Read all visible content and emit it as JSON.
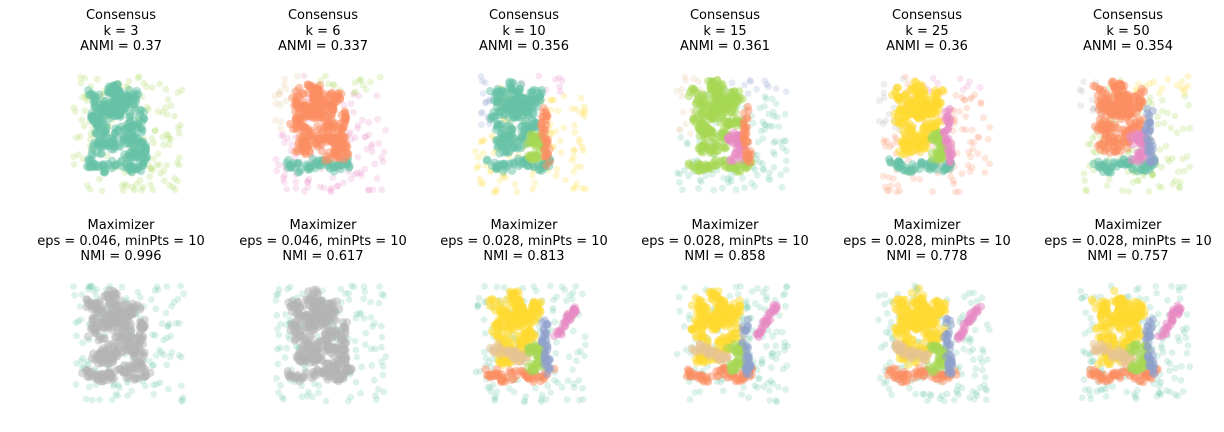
{
  "figure": {
    "colors": {
      "teal": "#66c2a5",
      "orange": "#fc8d62",
      "blue": "#8da0cb",
      "pink": "#e78ac3",
      "green": "#a6d854",
      "yellow": "#ffd92f",
      "tan": "#e5c494",
      "gray": "#b3b3b3"
    }
  },
  "chart_data": [
    {
      "type": "scatter",
      "title_lines": [
        "Consensus",
        "k = 3",
        "ANMI = 0.37"
      ],
      "method": "Consensus",
      "k": 3,
      "score_name": "ANMI",
      "score": 0.37,
      "cluster_colors": {
        "noise": "green",
        "curves": "teal",
        "box": "teal",
        "blob_curve": "teal",
        "bottom": "teal",
        "left_scatter": "green",
        "top_scatter": "green"
      },
      "axis": "off",
      "grid": false,
      "legend": "none"
    },
    {
      "type": "scatter",
      "title_lines": [
        "Consensus",
        "k = 6",
        "ANMI = 0.337"
      ],
      "method": "Consensus",
      "k": 6,
      "score_name": "ANMI",
      "score": 0.337,
      "cluster_colors": {
        "noise": "pink",
        "curves": "orange",
        "box": "orange",
        "blob_curve": "orange",
        "bottom": "teal",
        "left_scatter": "tan",
        "top_scatter": "green"
      },
      "axis": "off",
      "grid": false,
      "legend": "none"
    },
    {
      "type": "scatter",
      "title_lines": [
        "Consensus",
        "k = 10",
        "ANMI = 0.356"
      ],
      "method": "Consensus",
      "k": 10,
      "score_name": "ANMI",
      "score": 0.356,
      "cluster_colors": {
        "noise": "yellow",
        "curves": "teal",
        "box": "green",
        "blob_curve": "orange",
        "bottom": "teal",
        "left_scatter": "blue",
        "top_scatter": "pink"
      },
      "axis": "off",
      "grid": false,
      "legend": "none"
    },
    {
      "type": "scatter",
      "title_lines": [
        "Consensus",
        "k = 15",
        "ANMI = 0.361"
      ],
      "method": "Consensus",
      "k": 15,
      "score_name": "ANMI",
      "score": 0.361,
      "cluster_colors": {
        "noise": "teal",
        "curves": "green",
        "box": "pink",
        "blob_curve": "orange",
        "bottom": "green",
        "left_scatter": "tan",
        "top_scatter": "blue"
      },
      "axis": "off",
      "grid": false,
      "legend": "none"
    },
    {
      "type": "scatter",
      "title_lines": [
        "Consensus",
        "k = 25",
        "ANMI = 0.36"
      ],
      "method": "Consensus",
      "k": 25,
      "score_name": "ANMI",
      "score": 0.36,
      "cluster_colors": {
        "noise": "orange",
        "curves": "yellow",
        "box": "green",
        "blob_curve": "pink",
        "bottom": "teal",
        "left_scatter": "gray",
        "top_scatter": "pink"
      },
      "axis": "off",
      "grid": false,
      "legend": "none"
    },
    {
      "type": "scatter",
      "title_lines": [
        "Consensus",
        "k = 50",
        "ANMI = 0.354"
      ],
      "method": "Consensus",
      "k": 50,
      "score_name": "ANMI",
      "score": 0.354,
      "cluster_colors": {
        "noise": "green",
        "curves": "orange",
        "box": "pink",
        "blob_curve": "blue",
        "bottom": "teal",
        "left_scatter": "gray",
        "top_scatter": "yellow"
      },
      "axis": "off",
      "grid": false,
      "legend": "none"
    },
    {
      "type": "scatter",
      "title_lines": [
        "Maximizer",
        "eps = 0.046, minPts = 10",
        "NMI = 0.996"
      ],
      "method": "Maximizer",
      "eps": 0.046,
      "minPts": 10,
      "score_name": "NMI",
      "score": 0.996,
      "cluster_colors": {
        "noise": "teal",
        "curves": "gray",
        "box": "gray",
        "blob_curve": "gray",
        "bottom": "gray",
        "left_scatter": "teal",
        "top_scatter": "teal"
      },
      "axis": "off",
      "grid": false,
      "legend": "none"
    },
    {
      "type": "scatter",
      "title_lines": [
        "Maximizer",
        "eps = 0.046, minPts = 10",
        "NMI = 0.617"
      ],
      "method": "Maximizer",
      "eps": 0.046,
      "minPts": 10,
      "score_name": "NMI",
      "score": 0.617,
      "cluster_colors": {
        "noise": "teal",
        "curves": "gray",
        "box": "gray",
        "blob_curve": "gray",
        "bottom": "gray",
        "left_scatter": "teal",
        "top_scatter": "teal"
      },
      "axis": "off",
      "grid": false,
      "legend": "none"
    },
    {
      "type": "scatter",
      "title_lines": [
        "Maximizer",
        "eps = 0.028, minPts = 10",
        "NMI = 0.813"
      ],
      "method": "Maximizer",
      "eps": 0.028,
      "minPts": 10,
      "score_name": "NMI",
      "score": 0.813,
      "cluster_colors": {
        "noise": "teal",
        "curves": "yellow",
        "box": "green",
        "blob_curve": "blue",
        "bottom": "orange",
        "left_scatter": "teal",
        "top_scatter": "teal",
        "mid": "tan",
        "pink_curve": "pink"
      },
      "axis": "off",
      "grid": false,
      "legend": "none"
    },
    {
      "type": "scatter",
      "title_lines": [
        "Maximizer",
        "eps = 0.028, minPts = 10",
        "NMI = 0.858"
      ],
      "method": "Maximizer",
      "eps": 0.028,
      "minPts": 10,
      "score_name": "NMI",
      "score": 0.858,
      "cluster_colors": {
        "noise": "teal",
        "curves": "yellow",
        "box": "green",
        "blob_curve": "blue",
        "bottom": "orange",
        "left_scatter": "teal",
        "top_scatter": "teal",
        "mid": "tan",
        "pink_curve": "pink"
      },
      "axis": "off",
      "grid": false,
      "legend": "none"
    },
    {
      "type": "scatter",
      "title_lines": [
        "Maximizer",
        "eps = 0.028, minPts = 10",
        "NMI = 0.778"
      ],
      "method": "Maximizer",
      "eps": 0.028,
      "minPts": 10,
      "score_name": "NMI",
      "score": 0.778,
      "cluster_colors": {
        "noise": "teal",
        "curves": "yellow",
        "box": "green",
        "blob_curve": "blue",
        "bottom": "orange",
        "left_scatter": "teal",
        "top_scatter": "teal",
        "mid": "tan",
        "pink_curve": "pink"
      },
      "axis": "off",
      "grid": false,
      "legend": "none"
    },
    {
      "type": "scatter",
      "title_lines": [
        "Maximizer",
        "eps = 0.028, minPts = 10",
        "NMI = 0.757"
      ],
      "method": "Maximizer",
      "eps": 0.028,
      "minPts": 10,
      "score_name": "NMI",
      "score": 0.757,
      "cluster_colors": {
        "noise": "teal",
        "curves": "yellow",
        "box": "green",
        "blob_curve": "blue",
        "bottom": "orange",
        "left_scatter": "teal",
        "top_scatter": "teal",
        "mid": "tan",
        "pink_curve": "pink"
      },
      "axis": "off",
      "grid": false,
      "legend": "none"
    }
  ]
}
